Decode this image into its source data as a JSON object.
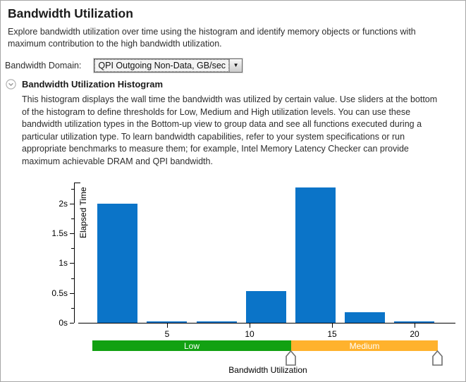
{
  "header": {
    "title": "Bandwidth Utilization",
    "description": "Explore bandwidth utilization over time using the histogram and identify memory objects or functions with maximum contribution to the high bandwidth utilization."
  },
  "domain_row": {
    "label": "Bandwidth Domain:",
    "selected": "QPI Outgoing Non-Data, GB/sec",
    "arrow_glyph": "▼"
  },
  "section": {
    "title": "Bandwidth Utilization Histogram",
    "description": "This histogram displays the wall time the bandwidth was utilized by certain value. Use sliders at the bottom of the histogram to define thresholds for Low, Medium and High utilization levels. You can use these bandwidth utilization types in the Bottom-up view to group data and see all functions executed during a particular utilization type. To learn bandwidth capabilities, refer to your system specifications or run appropriate benchmarks to measure them; for example, Intel Memory Latency Checker can provide maximum achievable DRAM and QPI bandwidth."
  },
  "chart_data": {
    "type": "bar",
    "title": "",
    "xlabel": "Bandwidth Utilization",
    "ylabel": "Elapsed Time",
    "bin_centers": [
      2,
      5,
      8,
      11,
      14,
      17,
      20
    ],
    "bin_width": 2.45,
    "values_seconds": [
      2.0,
      0.02,
      0.02,
      0.53,
      2.27,
      0.18,
      0.02
    ],
    "x_ticks": [
      5,
      10,
      15,
      20
    ],
    "y_ticks": [
      {
        "v": 0,
        "label": "0s"
      },
      {
        "v": 0.5,
        "label": "0.5s"
      },
      {
        "v": 1,
        "label": "1s"
      },
      {
        "v": 1.5,
        "label": "1.5s"
      },
      {
        "v": 2,
        "label": "2s"
      }
    ],
    "y_minor_ticks": [
      0.25,
      0.75,
      1.25,
      1.75,
      2.25
    ],
    "xlim": [
      0,
      23
    ],
    "ylim": [
      0,
      2.35
    ],
    "grid": false,
    "bar_color": "#0b74c8",
    "slider": {
      "segments": [
        {
          "label": "Low",
          "color": "#12a112",
          "from": 0.45,
          "to": 12.5
        },
        {
          "label": "Medium",
          "color": "#ffb22d",
          "from": 12.5,
          "to": 21.4
        }
      ],
      "handles_at": [
        12.5,
        21.4
      ]
    }
  }
}
